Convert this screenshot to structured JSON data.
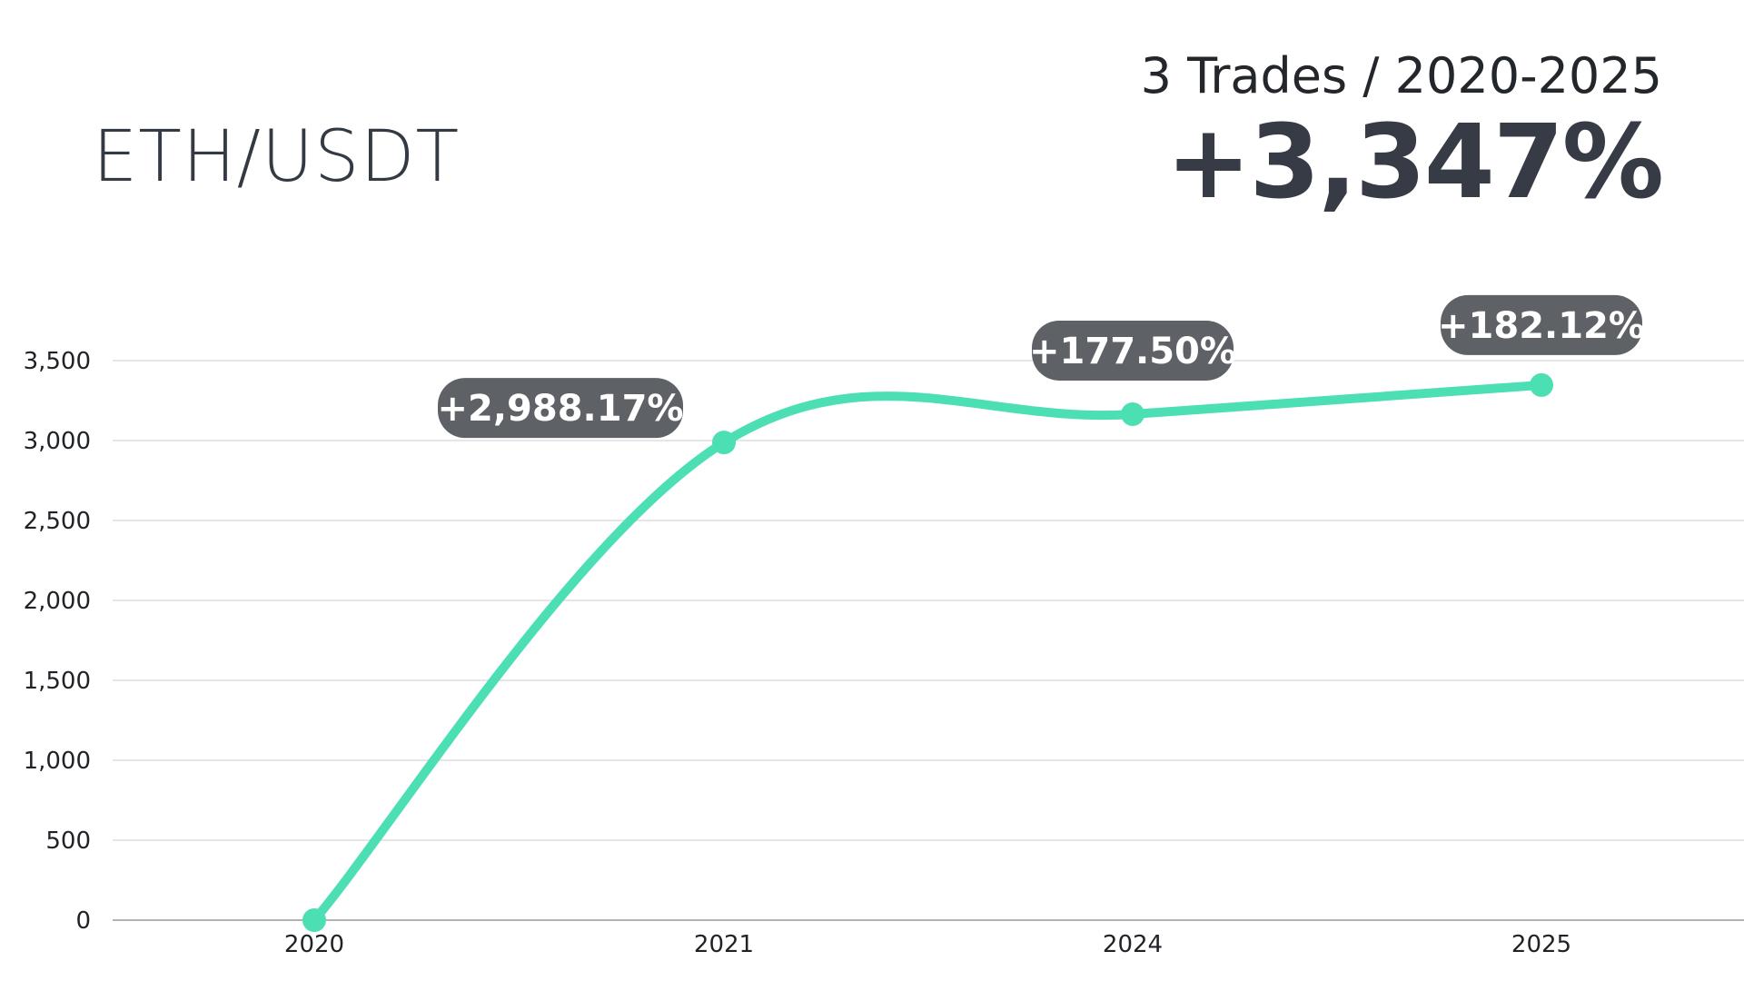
{
  "header": {
    "pair": "ETH/USDT",
    "subtitle": "3 Trades / 2020-2025",
    "total_return": "+3,347%"
  },
  "chart_data": {
    "type": "line",
    "title": "",
    "xlabel": "",
    "ylabel": "",
    "categories": [
      "2020",
      "2021",
      "2024",
      "2025"
    ],
    "series": [
      {
        "values": [
          0,
          2988,
          3165,
          3347
        ],
        "data_labels": [
          "",
          "+2,988.17%",
          "+177.50%",
          "+182.12%"
        ]
      }
    ],
    "y_ticks": [
      0,
      500,
      1000,
      1500,
      2000,
      2500,
      3000,
      3500
    ],
    "y_tick_labels": [
      "0",
      "500",
      "1,000",
      "1,500",
      "2,000",
      "2,500",
      "3,000",
      "3,500"
    ],
    "ylim": [
      0,
      3500
    ],
    "grid": "horizontal",
    "legend": "none",
    "smooth": true,
    "colors": {
      "line": "#4cdfb4",
      "badge": "#5e6166",
      "grid": "#dddddd",
      "axis": "#9a9a9a"
    }
  }
}
